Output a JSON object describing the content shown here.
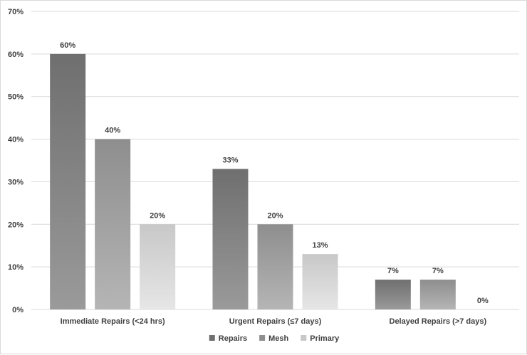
{
  "chart_data": {
    "type": "bar",
    "categories": [
      "Immediate Repairs (<24 hrs)",
      "Urgent Repairs (≤7 days)",
      "Delayed Repairs (>7 days)"
    ],
    "series": [
      {
        "name": "Repairs",
        "values": [
          60,
          33,
          7
        ],
        "labels": [
          "60%",
          "33%",
          "7%"
        ],
        "color": "#6f6f6f",
        "gradient_end": "#9a9a9a"
      },
      {
        "name": "Mesh",
        "values": [
          40,
          20,
          7
        ],
        "labels": [
          "40%",
          "20%",
          "7%"
        ],
        "color": "#8e8e8e",
        "gradient_end": "#b5b5b5"
      },
      {
        "name": "Primary",
        "values": [
          20,
          13,
          0
        ],
        "labels": [
          "20%",
          "13%",
          "0%"
        ],
        "color": "#c8c8c8",
        "gradient_end": "#e6e6e6"
      }
    ],
    "title": "",
    "xlabel": "",
    "ylabel": "",
    "ylim": [
      0,
      70
    ],
    "yticks": [
      0,
      10,
      20,
      30,
      40,
      50,
      60,
      70
    ],
    "ytick_labels": [
      "0%",
      "10%",
      "20%",
      "30%",
      "40%",
      "50%",
      "60%",
      "70%"
    ],
    "grid": true,
    "legend": "bottom-center",
    "gridline_color": "#d9d9d9",
    "text_color": "#404040"
  }
}
